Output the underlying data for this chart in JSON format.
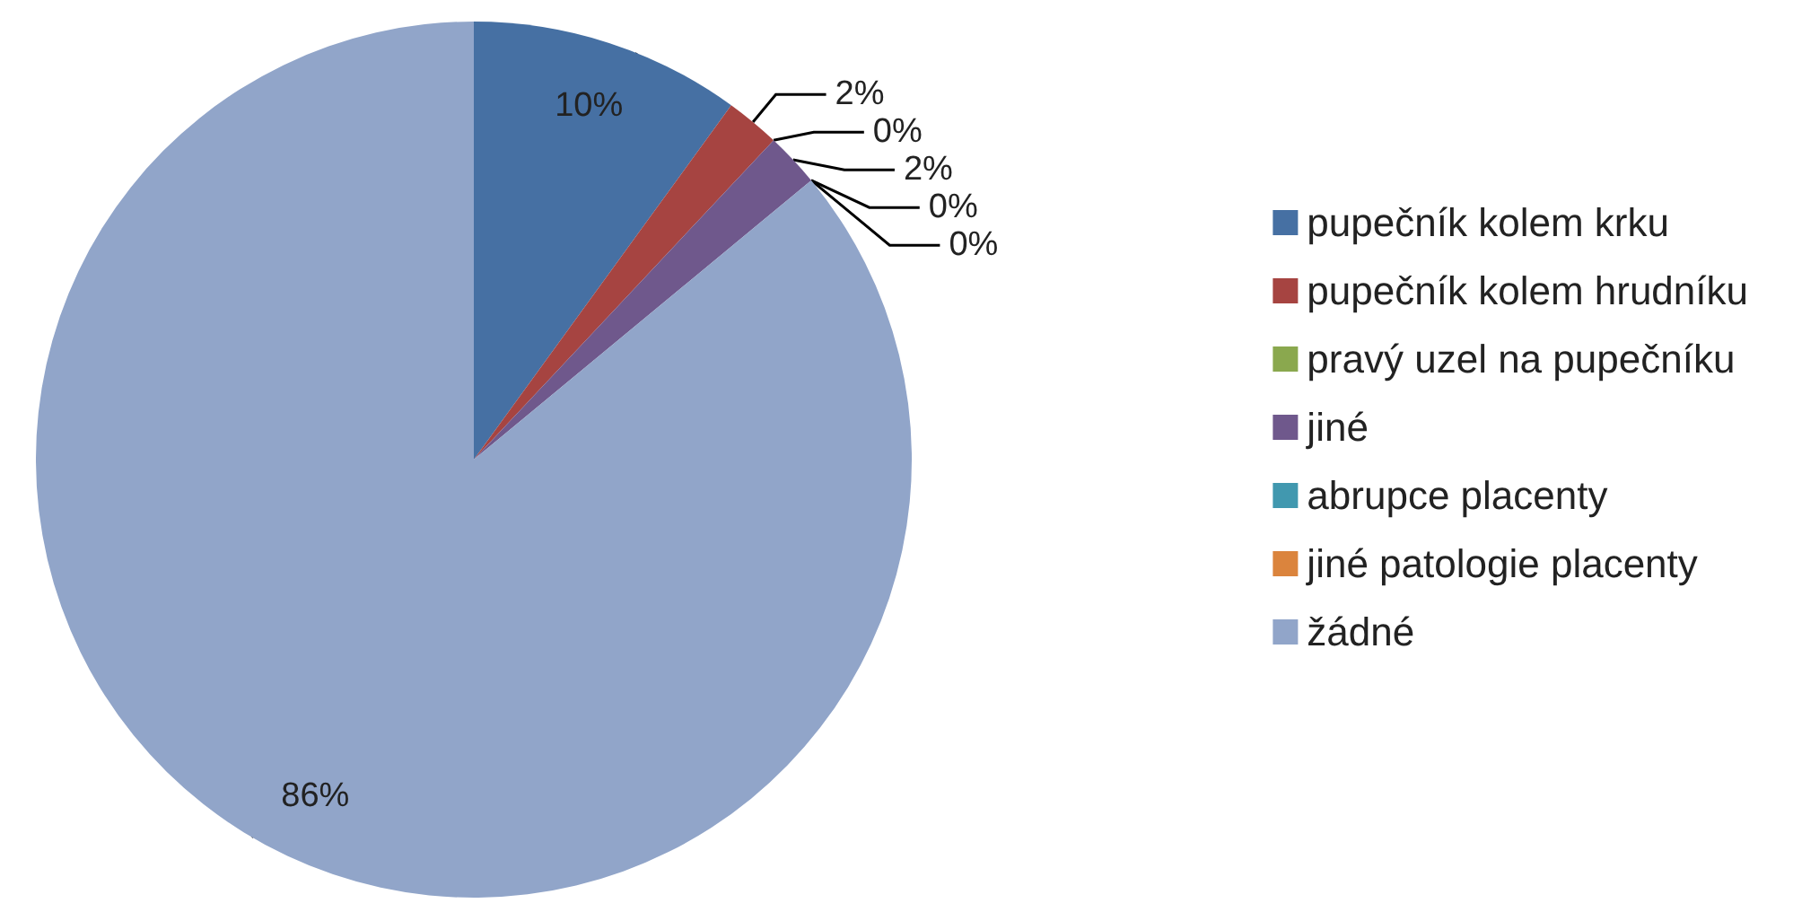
{
  "chart_data": {
    "type": "pie",
    "categories": [
      "pupečník kolem krku",
      "pupečník kolem hrudníku",
      "pravý uzel na pupečníku",
      "jiné",
      "abrupce placenty",
      "jiné patologie placenty",
      "žádné"
    ],
    "values": [
      10,
      2,
      0,
      2,
      0,
      0,
      86
    ],
    "value_labels": [
      "10%",
      "2%",
      "0%",
      "2%",
      "0%",
      "0%",
      "86%"
    ],
    "colors": [
      "#4670a3",
      "#a64441",
      "#8aa84e",
      "#6f588c",
      "#4198af",
      "#db843d",
      "#91a5c9"
    ],
    "legend": "right"
  }
}
